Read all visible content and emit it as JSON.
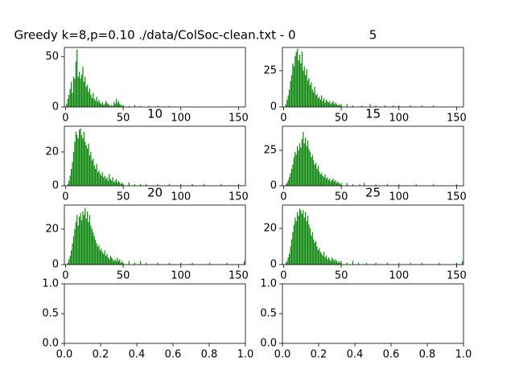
{
  "chart_data": [
    {
      "type": "bar",
      "title": "Greedy k=8,p=0.10 ./data/ColSoc-clean.txt - 0",
      "color": "#008000",
      "x": [
        1,
        2,
        3,
        4,
        5,
        6,
        7,
        8,
        9,
        10,
        11,
        12,
        13,
        14,
        15,
        16,
        17,
        18,
        19,
        20,
        21,
        22,
        23,
        24,
        25,
        26,
        27,
        28,
        29,
        30,
        31,
        32,
        33,
        34,
        35,
        36,
        37,
        38,
        39,
        40,
        41,
        42,
        43,
        44,
        45,
        46,
        47,
        48,
        49,
        50,
        55,
        60,
        65,
        72,
        80,
        90
      ],
      "values": [
        3,
        8,
        12,
        18,
        25,
        14,
        30,
        28,
        45,
        57,
        30,
        35,
        28,
        32,
        40,
        25,
        30,
        20,
        22,
        15,
        18,
        12,
        9,
        14,
        8,
        6,
        10,
        5,
        7,
        4,
        3,
        5,
        2,
        3,
        6,
        4,
        3,
        2,
        1,
        2,
        1,
        5,
        3,
        8,
        4,
        6,
        3,
        2,
        1,
        2,
        1,
        2,
        1,
        1,
        1,
        1
      ],
      "xlim": [
        -1,
        156
      ],
      "ylim": [
        0,
        59
      ],
      "xticks": [
        0,
        50,
        100,
        150
      ],
      "yticks": [
        0,
        50
      ]
    },
    {
      "type": "bar",
      "title": "5",
      "color": "#008000",
      "x": [
        1,
        2,
        3,
        4,
        5,
        6,
        7,
        8,
        9,
        10,
        11,
        12,
        13,
        14,
        15,
        16,
        17,
        18,
        19,
        20,
        21,
        22,
        23,
        24,
        25,
        26,
        27,
        28,
        29,
        30,
        31,
        32,
        33,
        34,
        35,
        36,
        37,
        38,
        39,
        40,
        41,
        42,
        43,
        44,
        45,
        46,
        47,
        48,
        49,
        50,
        55,
        60,
        68,
        75,
        80,
        88,
        95,
        100,
        110,
        120,
        130
      ],
      "values": [
        0,
        2,
        5,
        8,
        12,
        18,
        22,
        30,
        28,
        35,
        38,
        40,
        32,
        36,
        30,
        38,
        25,
        28,
        22,
        26,
        18,
        20,
        15,
        17,
        12,
        10,
        14,
        8,
        9,
        6,
        7,
        5,
        8,
        4,
        6,
        3,
        5,
        4,
        3,
        4,
        2,
        3,
        4,
        2,
        3,
        2,
        1,
        2,
        1,
        2,
        2,
        1,
        1,
        2,
        1,
        1,
        1,
        1,
        1,
        1,
        1
      ],
      "xlim": [
        -1,
        156
      ],
      "ylim": [
        0,
        41
      ],
      "xticks": [
        0,
        50,
        100,
        150
      ],
      "yticks": [
        0,
        25
      ]
    },
    {
      "type": "bar",
      "title": "10",
      "color": "#008000",
      "x": [
        1,
        2,
        3,
        4,
        5,
        6,
        7,
        8,
        9,
        10,
        11,
        12,
        13,
        14,
        15,
        16,
        17,
        18,
        19,
        20,
        21,
        22,
        23,
        24,
        25,
        26,
        27,
        28,
        29,
        30,
        31,
        32,
        33,
        34,
        35,
        36,
        37,
        38,
        39,
        40,
        41,
        42,
        43,
        44,
        45,
        46,
        47,
        48,
        49,
        50,
        55,
        60,
        65,
        70,
        80,
        90,
        100,
        110,
        120,
        135,
        150
      ],
      "values": [
        0,
        1,
        3,
        6,
        10,
        14,
        20,
        26,
        32,
        30,
        28,
        33,
        34,
        30,
        28,
        32,
        26,
        24,
        22,
        25,
        18,
        20,
        15,
        16,
        12,
        10,
        13,
        8,
        9,
        7,
        6,
        8,
        5,
        6,
        4,
        5,
        3,
        7,
        4,
        3,
        5,
        2,
        3,
        4,
        2,
        3,
        2,
        1,
        2,
        1,
        2,
        1,
        1,
        1,
        1,
        1,
        1,
        1,
        1,
        1,
        1
      ],
      "xlim": [
        -1,
        156
      ],
      "ylim": [
        0,
        35.2
      ],
      "xticks": [
        0,
        50,
        100,
        150
      ],
      "yticks": [
        0,
        20
      ]
    },
    {
      "type": "bar",
      "title": "15",
      "color": "#008000",
      "x": [
        1,
        2,
        3,
        4,
        5,
        6,
        7,
        8,
        9,
        10,
        11,
        12,
        13,
        14,
        15,
        16,
        17,
        18,
        19,
        20,
        21,
        22,
        23,
        24,
        25,
        26,
        27,
        28,
        29,
        30,
        31,
        32,
        33,
        34,
        35,
        36,
        37,
        38,
        39,
        40,
        41,
        42,
        43,
        44,
        45,
        46,
        47,
        48,
        49,
        50,
        55,
        60,
        66,
        70,
        80,
        90,
        100,
        115,
        130,
        150
      ],
      "values": [
        0,
        1,
        2,
        4,
        6,
        9,
        12,
        15,
        20,
        24,
        22,
        28,
        25,
        30,
        27,
        33,
        38,
        30,
        34,
        28,
        32,
        26,
        24,
        20,
        22,
        18,
        15,
        16,
        12,
        14,
        10,
        8,
        9,
        7,
        6,
        8,
        5,
        6,
        4,
        5,
        3,
        4,
        5,
        3,
        4,
        2,
        3,
        2,
        1,
        2,
        2,
        1,
        1,
        2,
        1,
        1,
        1,
        1,
        1,
        1
      ],
      "xlim": [
        -1,
        156
      ],
      "ylim": [
        0,
        42
      ],
      "xticks": [
        0,
        50,
        100,
        150
      ],
      "yticks": [
        0,
        25
      ]
    },
    {
      "type": "bar",
      "title": "20",
      "color": "#008000",
      "x": [
        1,
        2,
        3,
        4,
        5,
        6,
        7,
        8,
        9,
        10,
        11,
        12,
        13,
        14,
        15,
        16,
        17,
        18,
        19,
        20,
        21,
        22,
        23,
        24,
        25,
        26,
        27,
        28,
        29,
        30,
        31,
        32,
        33,
        34,
        35,
        36,
        37,
        38,
        39,
        40,
        41,
        42,
        43,
        44,
        45,
        46,
        47,
        48,
        49,
        50,
        55,
        60,
        65,
        70,
        80,
        90,
        100,
        110,
        125,
        140,
        155
      ],
      "values": [
        0,
        1,
        3,
        5,
        8,
        12,
        16,
        20,
        24,
        28,
        22,
        27,
        29,
        25,
        30,
        28,
        32,
        26,
        30,
        24,
        28,
        22,
        20,
        18,
        16,
        14,
        12,
        10,
        11,
        8,
        9,
        7,
        6,
        8,
        5,
        6,
        4,
        3,
        5,
        4,
        3,
        2,
        3,
        2,
        4,
        2,
        3,
        1,
        2,
        1,
        2,
        1,
        2,
        1,
        1,
        1,
        1,
        1,
        1,
        1,
        2
      ],
      "xlim": [
        -1,
        156
      ],
      "ylim": [
        0,
        33.6
      ],
      "xticks": [
        0,
        50,
        100,
        150
      ],
      "yticks": [
        0,
        20
      ]
    },
    {
      "type": "bar",
      "title": "25",
      "color": "#008000",
      "x": [
        1,
        2,
        3,
        4,
        5,
        6,
        7,
        8,
        9,
        10,
        11,
        12,
        13,
        14,
        15,
        16,
        17,
        18,
        19,
        20,
        21,
        22,
        23,
        24,
        25,
        26,
        27,
        28,
        29,
        30,
        31,
        32,
        33,
        34,
        35,
        36,
        37,
        38,
        39,
        40,
        41,
        42,
        43,
        44,
        45,
        46,
        47,
        48,
        49,
        50,
        55,
        60,
        65,
        72,
        80,
        90,
        100,
        110,
        120,
        135,
        150,
        155
      ],
      "values": [
        0,
        1,
        2,
        4,
        6,
        10,
        14,
        18,
        22,
        26,
        24,
        29,
        27,
        31,
        30,
        28,
        30,
        26,
        29,
        24,
        27,
        22,
        20,
        16,
        18,
        14,
        12,
        13,
        10,
        8,
        9,
        7,
        6,
        5,
        7,
        4,
        5,
        3,
        4,
        3,
        2,
        4,
        3,
        2,
        3,
        2,
        1,
        2,
        1,
        2,
        1,
        2,
        1,
        1,
        1,
        1,
        1,
        1,
        1,
        1,
        1,
        2
      ],
      "xlim": [
        -1,
        156
      ],
      "ylim": [
        0,
        32.9
      ],
      "xticks": [
        0,
        50,
        100,
        150
      ],
      "yticks": [
        0,
        20
      ]
    },
    {
      "type": "bar",
      "x": [],
      "values": [],
      "xlim": [
        0,
        1
      ],
      "ylim": [
        0,
        1
      ],
      "xticks": [
        {
          "value": 0,
          "label": "0.0"
        },
        {
          "value": 0.2,
          "label": "0.2"
        },
        {
          "value": 0.4,
          "label": "0.4"
        },
        {
          "value": 0.6,
          "label": "0.6"
        },
        {
          "value": 0.8,
          "label": "0.8"
        },
        {
          "value": 1,
          "label": "1.0"
        }
      ],
      "yticks": [
        {
          "value": 0,
          "label": "0.0"
        },
        {
          "value": 0.5,
          "label": "0.5"
        },
        {
          "value": 1,
          "label": "1.0"
        }
      ]
    },
    {
      "type": "bar",
      "x": [],
      "values": [],
      "xlim": [
        0,
        1
      ],
      "ylim": [
        0,
        1
      ],
      "xticks": [
        {
          "value": 0,
          "label": "0.0"
        },
        {
          "value": 0.2,
          "label": "0.2"
        },
        {
          "value": 0.4,
          "label": "0.4"
        },
        {
          "value": 0.6,
          "label": "0.6"
        },
        {
          "value": 0.8,
          "label": "0.8"
        },
        {
          "value": 1,
          "label": "1.0"
        }
      ],
      "yticks": [
        {
          "value": 0,
          "label": "0.0"
        },
        {
          "value": 0.5,
          "label": "0.5"
        },
        {
          "value": 1,
          "label": "1.0"
        }
      ]
    }
  ]
}
